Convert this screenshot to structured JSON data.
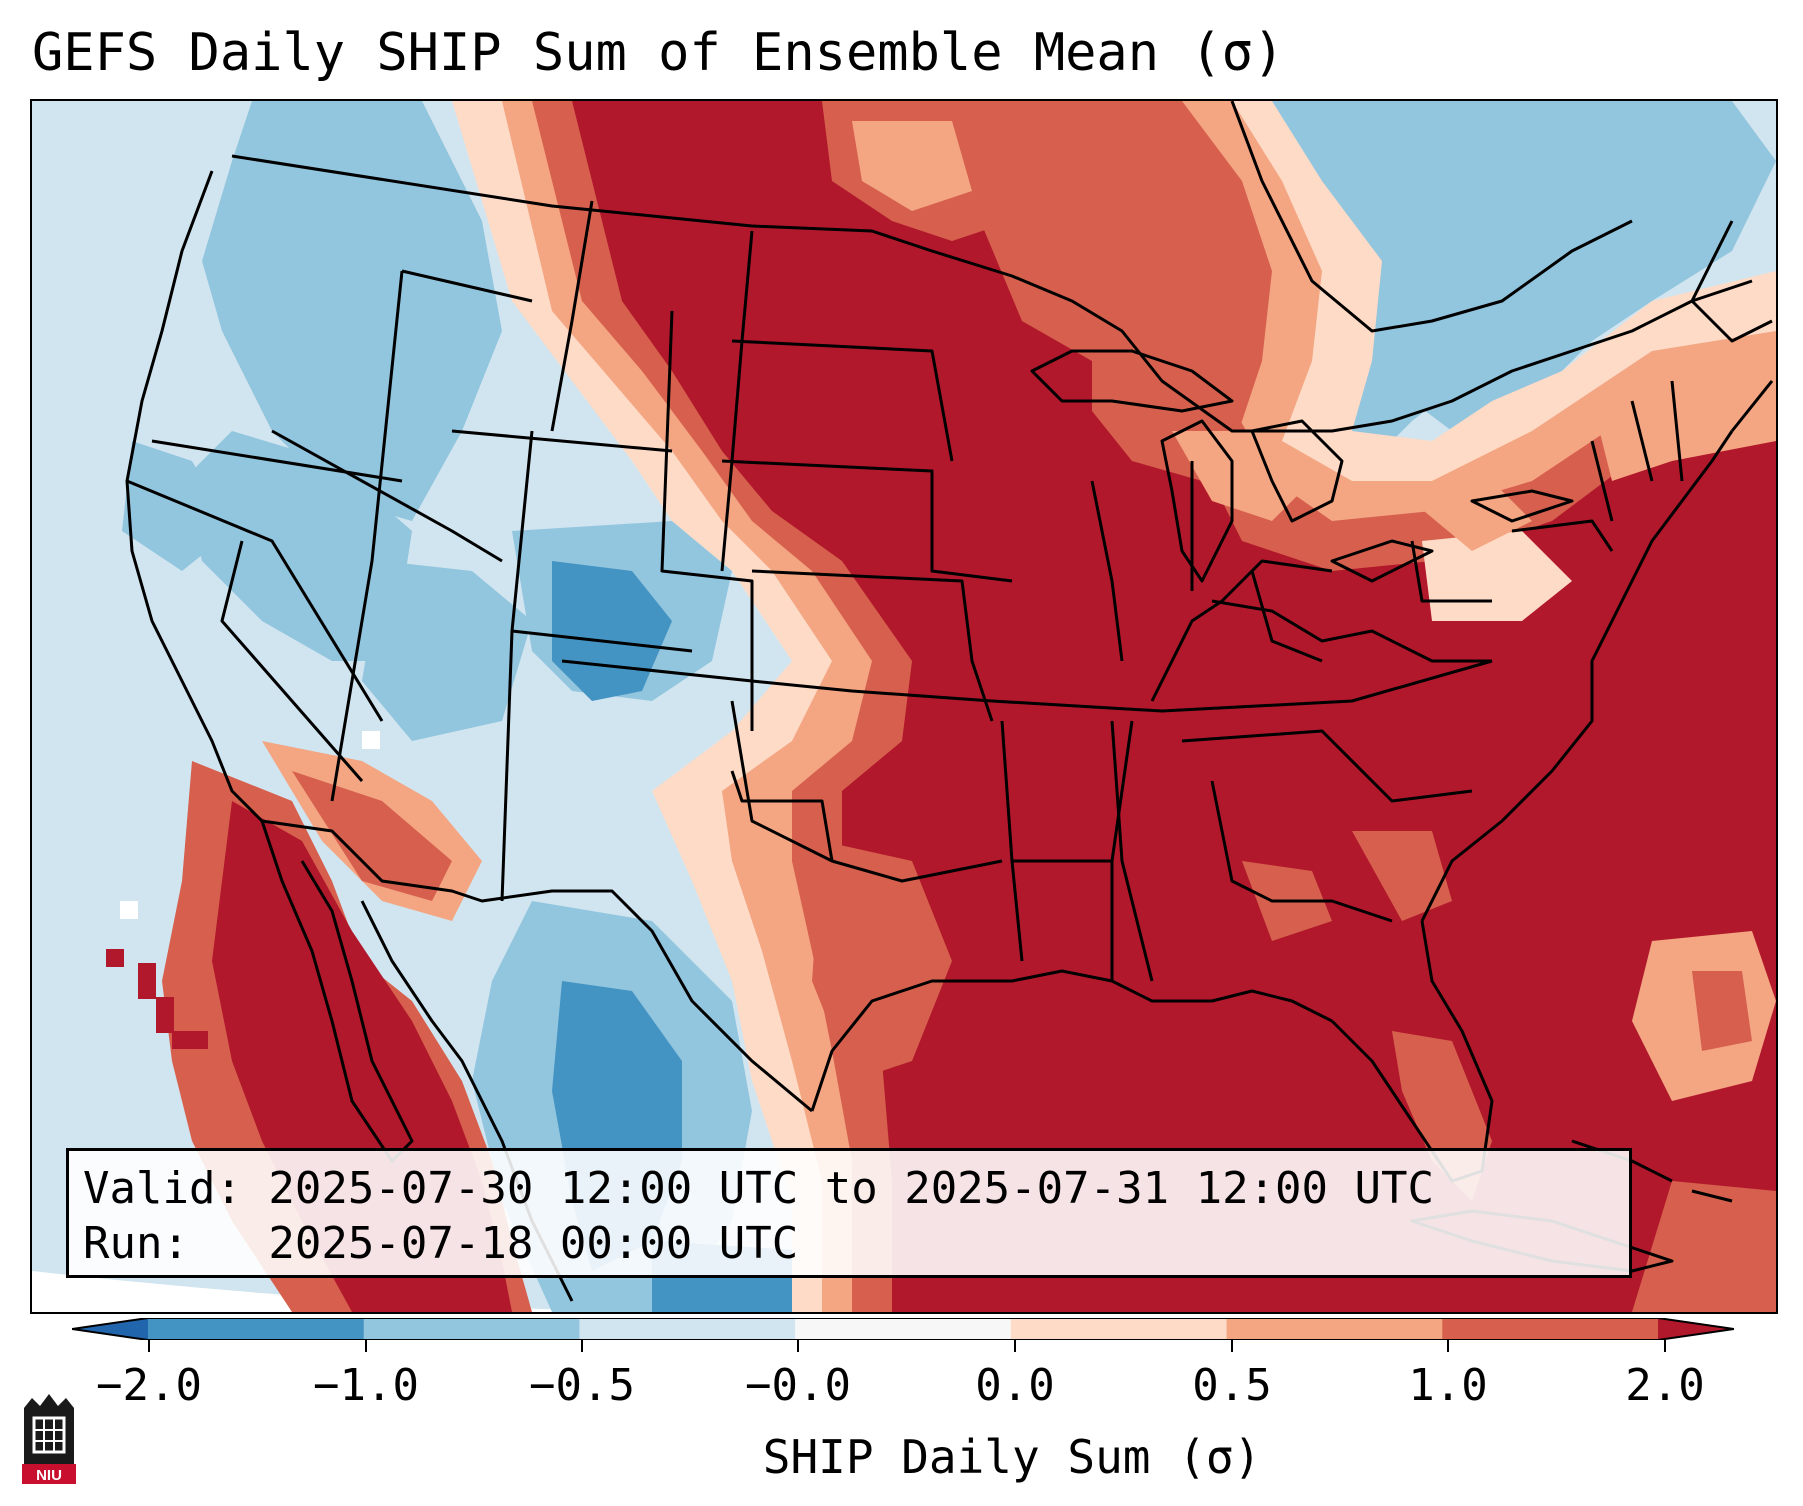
{
  "title": "GEFS Daily SHIP Sum of Ensemble Mean (σ)",
  "info": {
    "valid_line": "Valid: 2025-07-30 12:00 UTC to 2025-07-31 12:00 UTC",
    "run_line": "Run:   2025-07-18 00:00 UTC"
  },
  "colorbar": {
    "label": "SHIP Daily Sum (σ)",
    "ticks": [
      "−2.0",
      "−1.0",
      "−0.5",
      "−0.0",
      "0.0",
      "0.5",
      "1.0",
      "2.0"
    ],
    "bins": [
      {
        "range": "< -2.0",
        "color": "#2166ac"
      },
      {
        "range": "-2.0 to -1.0",
        "color": "#4393c3"
      },
      {
        "range": "-1.0 to -0.5",
        "color": "#92c5de"
      },
      {
        "range": "-0.5 to -0.0",
        "color": "#d1e5f0"
      },
      {
        "range": "-0.0 to 0.0",
        "color": "#f7f7f7"
      },
      {
        "range": "0.0 to 0.5",
        "color": "#fddbc7"
      },
      {
        "range": "0.5 to 1.0",
        "color": "#f4a582"
      },
      {
        "range": "1.0 to 2.0",
        "color": "#d6604d"
      },
      {
        "range": "> 2.0",
        "color": "#b2182b"
      }
    ]
  },
  "map": {
    "region": "Contiguous United States",
    "field": "SHIP daily sum anomaly (σ)",
    "patterns": [
      {
        "area": "Pacific Northwest / Great Basin / Desert Southwest",
        "category": "-1.0 to -0.0"
      },
      {
        "area": "Southern Colorado Rockies / West Texas",
        "category": "-2.0 to -0.5"
      },
      {
        "area": "Northern & Central Plains / Midwest / Southeast / Western Atlantic",
        "category": "> 2.0"
      },
      {
        "area": "Northeast / New England / Quebec",
        "category": "-1.0 to 0.0"
      },
      {
        "area": "Northern Mexico / Baja coast",
        "category": "> 1.0"
      }
    ]
  },
  "logo": {
    "text": "NIU",
    "icon": "niu-logo-icon"
  }
}
